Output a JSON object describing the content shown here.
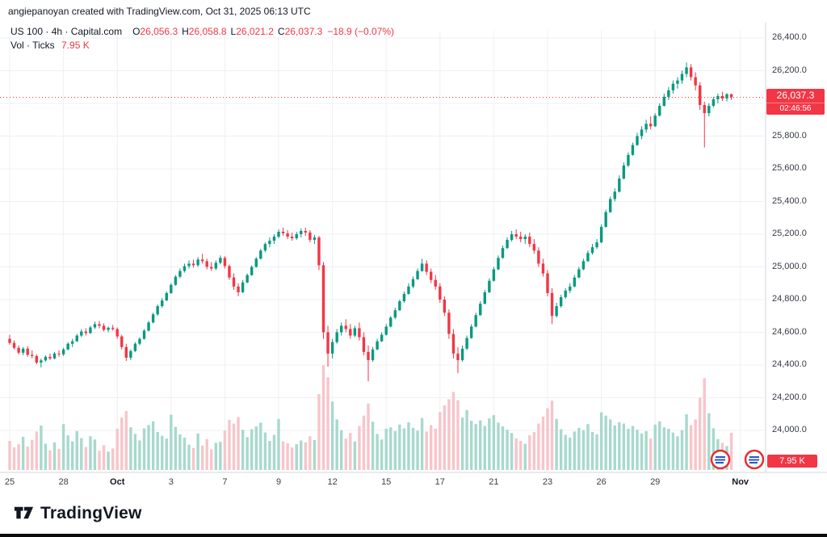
{
  "watermark": "angiepanoyan created with TradingView.com, Oct 31, 2025 06:13 UTC",
  "legend": {
    "symbol": "US 100 · 4h · Capital.com",
    "o_label": "O",
    "o": "26,056.3",
    "h_label": "H",
    "h": "26,058.8",
    "l_label": "L",
    "l": "26,021.2",
    "c_label": "C",
    "c": "26,037.3",
    "change": "−18.9 (−0.07%)",
    "vol_label": "Vol · Ticks",
    "vol_value": "7.95 K"
  },
  "price_badge": {
    "price": "26,037.3",
    "countdown": "02:46:56"
  },
  "volume_badge": "7.95 K",
  "footer_logo": "TradingView",
  "colors": {
    "up": "#089981",
    "down": "#f23645",
    "vol_up": "#a7d9cc",
    "vol_down": "#f7c5ca",
    "grid": "#eef0f5",
    "border": "#d1d4dc",
    "axis_text": "#363a45",
    "badge": "#f23645"
  },
  "chart_data": {
    "type": "candlestick+volume",
    "title": "US 100 · 4h · Capital.com",
    "symbol": "US 100",
    "timeframe": "4h",
    "exchange": "Capital.com",
    "last_price": 26037.3,
    "last_volume_ticks": "7.95 K",
    "price_axis": {
      "min": 24000,
      "max": 26400,
      "step": 200
    },
    "y_ticks": [
      {
        "label": "26,400.0",
        "price": 26400
      },
      {
        "label": "26,200.0",
        "price": 26200
      },
      {
        "label": "26,000.0",
        "price": 26000
      },
      {
        "label": "25,800.0",
        "price": 25800
      },
      {
        "label": "25,600.0",
        "price": 25600
      },
      {
        "label": "25,400.0",
        "price": 25400
      },
      {
        "label": "25,200.0",
        "price": 25200
      },
      {
        "label": "25,000.0",
        "price": 25000
      },
      {
        "label": "24,800.0",
        "price": 24800
      },
      {
        "label": "24,600.0",
        "price": 24600
      },
      {
        "label": "24,400.0",
        "price": 24400
      },
      {
        "label": "24,200.0",
        "price": 24200
      },
      {
        "label": "24,000.0",
        "price": 24000
      }
    ],
    "x_ticks": [
      {
        "label": "25",
        "index": 0
      },
      {
        "label": "28",
        "index": 12
      },
      {
        "label": "Oct",
        "index": 24,
        "major": true
      },
      {
        "label": "3",
        "index": 36
      },
      {
        "label": "7",
        "index": 48
      },
      {
        "label": "9",
        "index": 60
      },
      {
        "label": "12",
        "index": 72
      },
      {
        "label": "15",
        "index": 84
      },
      {
        "label": "17",
        "index": 96
      },
      {
        "label": "21",
        "index": 108
      },
      {
        "label": "23",
        "index": 120
      },
      {
        "label": "26",
        "index": 132
      },
      {
        "label": "29",
        "index": 144
      },
      {
        "label": "Nov",
        "index": 163,
        "major": true
      }
    ],
    "candles_format": [
      "open",
      "high",
      "low",
      "close",
      "volume_k_ticks"
    ],
    "candles": [
      [
        24560,
        24585,
        24525,
        24535,
        6.2
      ],
      [
        24535,
        24550,
        24495,
        24505,
        4.8
      ],
      [
        24505,
        24520,
        24465,
        24475,
        5.5
      ],
      [
        24475,
        24510,
        24460,
        24500,
        7.1
      ],
      [
        24500,
        24515,
        24450,
        24462,
        5.0
      ],
      [
        24462,
        24490,
        24440,
        24455,
        6.4
      ],
      [
        24455,
        24465,
        24405,
        24415,
        8.2
      ],
      [
        24415,
        24440,
        24385,
        24428,
        9.5
      ],
      [
        24428,
        24460,
        24420,
        24450,
        5.6
      ],
      [
        24450,
        24470,
        24430,
        24440,
        4.2
      ],
      [
        24440,
        24480,
        24435,
        24470,
        5.9
      ],
      [
        24470,
        24490,
        24450,
        24465,
        4.5
      ],
      [
        24465,
        24505,
        24455,
        24495,
        9.8
      ],
      [
        24495,
        24540,
        24490,
        24530,
        7.4
      ],
      [
        24530,
        24560,
        24510,
        24545,
        6.1
      ],
      [
        24545,
        24590,
        24540,
        24580,
        8.3
      ],
      [
        24580,
        24620,
        24570,
        24605,
        6.8
      ],
      [
        24605,
        24625,
        24580,
        24595,
        4.9
      ],
      [
        24595,
        24640,
        24590,
        24630,
        7.2
      ],
      [
        24630,
        24665,
        24620,
        24650,
        6.5
      ],
      [
        24650,
        24670,
        24625,
        24640,
        4.1
      ],
      [
        24640,
        24655,
        24605,
        24615,
        5.3
      ],
      [
        24615,
        24635,
        24600,
        24628,
        3.9
      ],
      [
        24628,
        24645,
        24610,
        24620,
        4.6
      ],
      [
        24620,
        24630,
        24560,
        24575,
        8.8
      ],
      [
        24575,
        24585,
        24495,
        24510,
        11.2
      ],
      [
        24510,
        24530,
        24425,
        24445,
        12.6
      ],
      [
        24445,
        24495,
        24430,
        24485,
        9.1
      ],
      [
        24485,
        24540,
        24480,
        24530,
        7.7
      ],
      [
        24530,
        24570,
        24520,
        24560,
        6.3
      ],
      [
        24560,
        24620,
        24555,
        24610,
        8.9
      ],
      [
        24610,
        24670,
        24605,
        24660,
        9.6
      ],
      [
        24660,
        24720,
        24655,
        24710,
        10.4
      ],
      [
        24710,
        24770,
        24700,
        24760,
        8.1
      ],
      [
        24760,
        24810,
        24750,
        24795,
        7.3
      ],
      [
        24795,
        24850,
        24790,
        24840,
        6.7
      ],
      [
        24840,
        24900,
        24835,
        24890,
        11.8
      ],
      [
        24890,
        24950,
        24885,
        24940,
        9.2
      ],
      [
        24940,
        24990,
        24930,
        24975,
        7.6
      ],
      [
        24975,
        25020,
        24965,
        25005,
        6.9
      ],
      [
        25005,
        25040,
        24990,
        25020,
        5.4
      ],
      [
        25020,
        25045,
        24995,
        25010,
        4.7
      ],
      [
        25010,
        25060,
        25000,
        25045,
        7.8
      ],
      [
        25045,
        25080,
        25020,
        25035,
        5.2
      ],
      [
        25035,
        25050,
        24985,
        25000,
        6.6
      ],
      [
        25000,
        25030,
        24975,
        24990,
        4.4
      ],
      [
        24990,
        25040,
        24980,
        25025,
        5.8
      ],
      [
        25025,
        25070,
        25015,
        25055,
        6.0
      ],
      [
        25055,
        25065,
        24990,
        25005,
        8.4
      ],
      [
        25005,
        25015,
        24920,
        24935,
        10.7
      ],
      [
        24935,
        24960,
        24860,
        24880,
        9.9
      ],
      [
        24880,
        24900,
        24820,
        24845,
        11.3
      ],
      [
        24845,
        24920,
        24840,
        24905,
        8.6
      ],
      [
        24905,
        24960,
        24900,
        24950,
        7.0
      ],
      [
        24950,
        25010,
        24945,
        25000,
        8.7
      ],
      [
        25000,
        25060,
        24995,
        25050,
        9.3
      ],
      [
        25050,
        25110,
        25045,
        25100,
        10.1
      ],
      [
        25100,
        25150,
        25090,
        25140,
        8.0
      ],
      [
        25140,
        25180,
        25120,
        25160,
        6.2
      ],
      [
        25160,
        25200,
        25140,
        25185,
        7.5
      ],
      [
        25185,
        25230,
        25175,
        25215,
        10.9
      ],
      [
        25215,
        25240,
        25190,
        25205,
        6.1
      ],
      [
        25205,
        25225,
        25170,
        25185,
        5.7
      ],
      [
        25185,
        25210,
        25160,
        25175,
        4.8
      ],
      [
        25175,
        25215,
        25165,
        25200,
        5.5
      ],
      [
        25200,
        25235,
        25180,
        25220,
        6.3
      ],
      [
        25220,
        25240,
        25190,
        25210,
        5.9
      ],
      [
        25210,
        25225,
        25150,
        25165,
        7.2
      ],
      [
        25165,
        25195,
        25140,
        25180,
        6.4
      ],
      [
        25180,
        25190,
        24980,
        25010,
        16.2
      ],
      [
        25010,
        25030,
        24560,
        24600,
        22.4
      ],
      [
        24600,
        24640,
        24390,
        24470,
        19.8
      ],
      [
        24470,
        24560,
        24440,
        24540,
        14.6
      ],
      [
        24540,
        24620,
        24530,
        24600,
        10.8
      ],
      [
        24600,
        24660,
        24580,
        24640,
        8.5
      ],
      [
        24640,
        24680,
        24600,
        24620,
        6.7
      ],
      [
        24620,
        24650,
        24560,
        24580,
        7.9
      ],
      [
        24580,
        24640,
        24570,
        24625,
        6.1
      ],
      [
        24625,
        24660,
        24550,
        24570,
        9.4
      ],
      [
        24570,
        24600,
        24460,
        24480,
        11.6
      ],
      [
        24480,
        24520,
        24300,
        24430,
        14.2
      ],
      [
        24430,
        24510,
        24420,
        24495,
        10.3
      ],
      [
        24495,
        24560,
        24490,
        24545,
        7.7
      ],
      [
        24545,
        24600,
        24540,
        24585,
        6.5
      ],
      [
        24585,
        24650,
        24580,
        24635,
        8.8
      ],
      [
        24635,
        24700,
        24630,
        24690,
        9.1
      ],
      [
        24690,
        24750,
        24680,
        24735,
        8.3
      ],
      [
        24735,
        24800,
        24730,
        24790,
        9.7
      ],
      [
        24790,
        24850,
        24780,
        24835,
        8.9
      ],
      [
        24835,
        24900,
        24830,
        24880,
        10.2
      ],
      [
        24880,
        24940,
        24870,
        24925,
        9.0
      ],
      [
        24925,
        24990,
        24920,
        24975,
        8.4
      ],
      [
        24975,
        25050,
        24970,
        25020,
        11.1
      ],
      [
        25020,
        25040,
        24950,
        24970,
        8.2
      ],
      [
        24970,
        24990,
        24900,
        24920,
        9.6
      ],
      [
        24920,
        24950,
        24860,
        24880,
        8.8
      ],
      [
        24880,
        24900,
        24780,
        24800,
        12.4
      ],
      [
        24800,
        24820,
        24700,
        24720,
        13.8
      ],
      [
        24720,
        24740,
        24560,
        24590,
        15.1
      ],
      [
        24590,
        24620,
        24440,
        24470,
        16.7
      ],
      [
        24470,
        24510,
        24350,
        24430,
        14.9
      ],
      [
        24430,
        24520,
        24420,
        24500,
        11.2
      ],
      [
        24500,
        24580,
        24490,
        24565,
        12.8
      ],
      [
        24565,
        24650,
        24560,
        24635,
        10.5
      ],
      [
        24635,
        24720,
        24630,
        24705,
        9.8
      ],
      [
        24705,
        24790,
        24700,
        24775,
        10.6
      ],
      [
        24775,
        24860,
        24770,
        24845,
        9.4
      ],
      [
        24845,
        24930,
        24840,
        24915,
        11.0
      ],
      [
        24915,
        25000,
        24910,
        24985,
        11.7
      ],
      [
        24985,
        25070,
        24980,
        25055,
        10.1
      ],
      [
        25055,
        25130,
        25050,
        25115,
        9.3
      ],
      [
        25115,
        25180,
        25110,
        25165,
        8.6
      ],
      [
        25165,
        25220,
        25155,
        25200,
        7.9
      ],
      [
        25200,
        25230,
        25170,
        25185,
        6.8
      ],
      [
        25185,
        25215,
        25150,
        25170,
        6.2
      ],
      [
        25170,
        25200,
        25140,
        25185,
        5.6
      ],
      [
        25185,
        25210,
        25120,
        25140,
        7.4
      ],
      [
        25140,
        25170,
        25080,
        25100,
        8.1
      ],
      [
        25100,
        25120,
        25000,
        25020,
        9.9
      ],
      [
        25020,
        25050,
        24940,
        24960,
        11.4
      ],
      [
        24960,
        24980,
        24820,
        24840,
        13.2
      ],
      [
        24840,
        24870,
        24650,
        24700,
        14.8
      ],
      [
        24700,
        24780,
        24690,
        24760,
        10.9
      ],
      [
        24760,
        24830,
        24750,
        24815,
        8.7
      ],
      [
        24815,
        24870,
        24805,
        24855,
        7.5
      ],
      [
        24855,
        24900,
        24840,
        24880,
        6.9
      ],
      [
        24880,
        24950,
        24875,
        24935,
        8.2
      ],
      [
        24935,
        25000,
        24930,
        24985,
        9.0
      ],
      [
        24985,
        25050,
        24980,
        25035,
        8.5
      ],
      [
        25035,
        25100,
        25030,
        25085,
        9.8
      ],
      [
        25085,
        25140,
        25075,
        25120,
        8.1
      ],
      [
        25120,
        25170,
        25110,
        25150,
        7.6
      ],
      [
        25150,
        25260,
        25145,
        25245,
        12.3
      ],
      [
        25245,
        25350,
        25240,
        25335,
        11.6
      ],
      [
        25335,
        25430,
        25330,
        25415,
        10.8
      ],
      [
        25415,
        25480,
        25400,
        25460,
        9.5
      ],
      [
        25460,
        25560,
        25455,
        25540,
        10.2
      ],
      [
        25540,
        25640,
        25535,
        25620,
        9.9
      ],
      [
        25620,
        25700,
        25610,
        25685,
        8.8
      ],
      [
        25685,
        25760,
        25680,
        25745,
        9.4
      ],
      [
        25745,
        25820,
        25740,
        25800,
        8.6
      ],
      [
        25800,
        25860,
        25780,
        25840,
        7.8
      ],
      [
        25840,
        25900,
        25820,
        25875,
        8.3
      ],
      [
        25875,
        25920,
        25840,
        25860,
        6.7
      ],
      [
        25860,
        25940,
        25855,
        25925,
        9.7
      ],
      [
        25925,
        26000,
        25920,
        25985,
        10.4
      ],
      [
        25985,
        26060,
        25980,
        26040,
        9.1
      ],
      [
        26040,
        26100,
        26020,
        26080,
        8.8
      ],
      [
        26080,
        26140,
        26060,
        26120,
        8.0
      ],
      [
        26120,
        26160,
        26090,
        26140,
        7.2
      ],
      [
        26140,
        26200,
        26120,
        26180,
        8.5
      ],
      [
        26180,
        26250,
        26160,
        26220,
        11.9
      ],
      [
        26220,
        26240,
        26140,
        26160,
        9.6
      ],
      [
        26160,
        26190,
        26080,
        26110,
        10.8
      ],
      [
        26110,
        26130,
        25960,
        25990,
        15.4
      ],
      [
        25990,
        26010,
        25730,
        25940,
        19.6
      ],
      [
        25940,
        26000,
        25920,
        25985,
        12.1
      ],
      [
        25985,
        26040,
        25975,
        26025,
        8.9
      ],
      [
        26025,
        26060,
        26000,
        26045,
        6.6
      ],
      [
        26045,
        26070,
        26015,
        26030,
        5.8
      ],
      [
        26030,
        26062,
        26012,
        26056.2,
        5.1
      ],
      [
        26056.3,
        26058.8,
        26021.2,
        26037.3,
        7.95
      ]
    ]
  }
}
